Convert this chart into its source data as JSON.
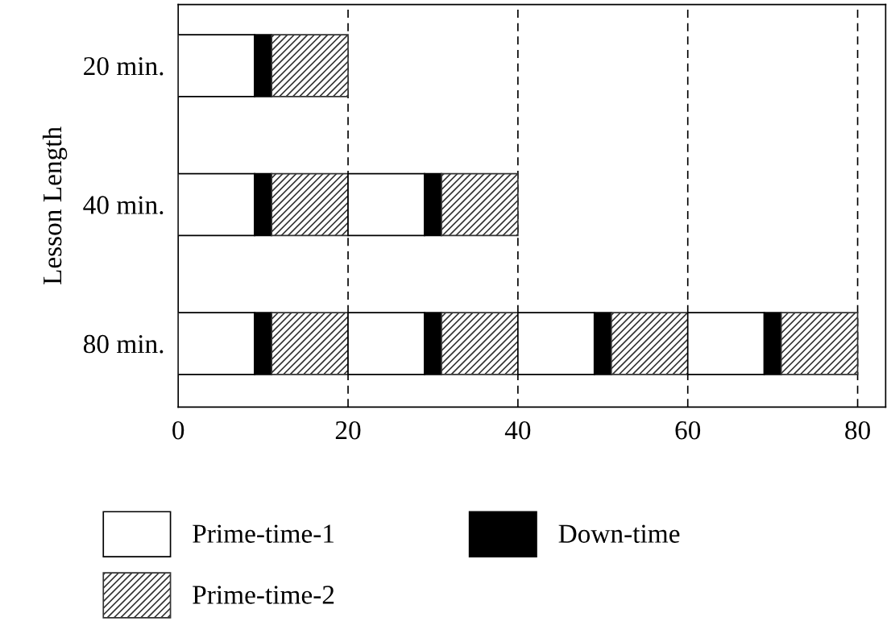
{
  "chart_data": {
    "type": "bar",
    "orientation": "horizontal",
    "stacked": true,
    "ylabel": "Lesson Length",
    "categories": [
      "20 min.",
      "40 min.",
      "80 min."
    ],
    "series": [
      {
        "name": "Prime-time-1",
        "color": "#ffffff",
        "values": [
          9,
          9,
          9
        ]
      },
      {
        "name": "Down-time",
        "color": "#000000",
        "values": [
          2,
          2,
          2
        ]
      },
      {
        "name": "Prime-time-2",
        "color": "#333333",
        "values": [
          9,
          9,
          9
        ]
      },
      {
        "color": "#ffffff",
        "values": [
          null,
          9,
          9
        ]
      },
      {
        "color": "#000000",
        "values": [
          null,
          2,
          2
        ]
      },
      {
        "color": "#333333",
        "values": [
          null,
          9,
          9
        ]
      },
      {
        "color": "#ffffff",
        "values": [
          null,
          null,
          9
        ]
      },
      {
        "color": "#000000",
        "values": [
          null,
          null,
          2
        ]
      },
      {
        "color": "#333333",
        "values": [
          null,
          null,
          9
        ]
      },
      {
        "color": "#ffffff",
        "values": [
          null,
          null,
          9
        ]
      },
      {
        "color": "#000000",
        "values": [
          null,
          null,
          2
        ]
      },
      {
        "color": "#333333",
        "values": [
          null,
          null,
          9
        ]
      }
    ],
    "xlim": [
      0,
      83.3
    ],
    "xticks": [
      0,
      20,
      40,
      60,
      80
    ],
    "grid": "x",
    "legend": "bottom"
  }
}
